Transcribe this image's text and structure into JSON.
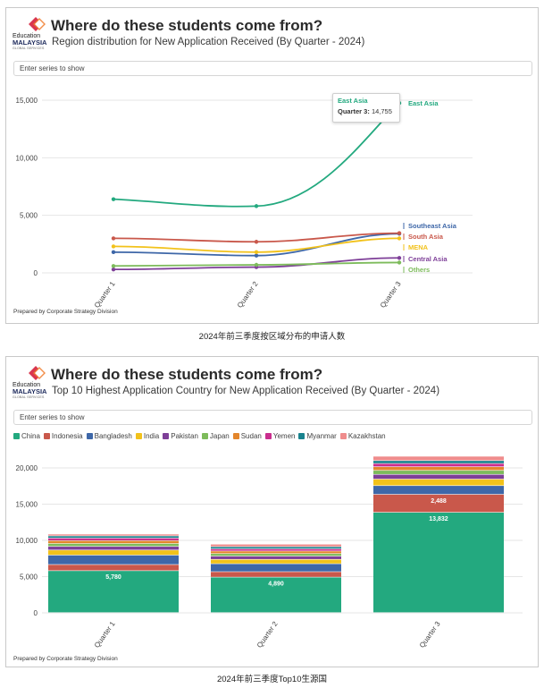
{
  "brand": {
    "logo_line1": "Education",
    "logo_line2": "MALAYSIA",
    "logo_line3": "GLOBAL SERVICES"
  },
  "panel1": {
    "title": "Where do these students come from?",
    "subtitle": "Region distribution for New Application Received (By Quarter - 2024)",
    "series_placeholder": "Enter series to show",
    "footer": "Prepared by Corporate Strategy Division",
    "caption": "2024年前三季度按区域分布的申请人数",
    "tooltip": {
      "series": "East Asia",
      "label": "Quarter 3:",
      "value": "14,755"
    }
  },
  "panel2": {
    "title": "Where do these students come from?",
    "subtitle": "Top 10 Highest Application Country for New Application Received (By Quarter - 2024)",
    "series_placeholder": "Enter series to show",
    "footer": "Prepared by Corporate Strategy Division",
    "caption": "2024年前三季度Top10生源国"
  },
  "chart_data": [
    {
      "type": "line",
      "title": "Where do these students come from?",
      "subtitle": "Region distribution for New Application Received (By Quarter - 2024)",
      "categories": [
        "Quarter 1",
        "Quarter 2",
        "Quarter 3"
      ],
      "ylim": [
        0,
        15000
      ],
      "yticks": [
        0,
        5000,
        10000,
        15000
      ],
      "ytick_labels": [
        "0",
        "5,000",
        "10,000",
        "15,000"
      ],
      "grid": true,
      "legend": "end-labels",
      "series": [
        {
          "name": "East Asia",
          "values": [
            6400,
            5800,
            14755
          ],
          "color": "#23a97f"
        },
        {
          "name": "Southeast Asia",
          "values": [
            1800,
            1500,
            3400
          ],
          "color": "#3e67a8"
        },
        {
          "name": "South Asia",
          "values": [
            3000,
            2700,
            3450
          ],
          "color": "#c9584b"
        },
        {
          "name": "MENA",
          "values": [
            2300,
            1800,
            3000
          ],
          "color": "#f2c21b"
        },
        {
          "name": "Central Asia",
          "values": [
            300,
            500,
            1300
          ],
          "color": "#7e3f98"
        },
        {
          "name": "Others",
          "values": [
            600,
            700,
            900
          ],
          "color": "#7dbb5b"
        }
      ]
    },
    {
      "type": "bar",
      "stacked": true,
      "title": "Where do these students come from?",
      "subtitle": "Top 10 Highest Application Country for New Application Received (By Quarter - 2024)",
      "categories": [
        "Quarter 1",
        "Quarter 2",
        "Quarter 3"
      ],
      "ylim": [
        0,
        20000
      ],
      "yticks": [
        0,
        5000,
        10000,
        15000,
        20000
      ],
      "ytick_labels": [
        "0",
        "5,000",
        "10,000",
        "15,000",
        "20,000"
      ],
      "grid": true,
      "legend": "top",
      "series": [
        {
          "name": "China",
          "values": [
            5780,
            4890,
            13832
          ],
          "color": "#23a97f",
          "labels": [
            "5,780",
            "4,890",
            "13,832"
          ]
        },
        {
          "name": "Indonesia",
          "values": [
            850,
            750,
            2488
          ],
          "color": "#c9584b",
          "labels": [
            "",
            "",
            "2,488"
          ]
        },
        {
          "name": "Bangladesh",
          "values": [
            1300,
            1100,
            1200
          ],
          "color": "#3e67a8"
        },
        {
          "name": "India",
          "values": [
            700,
            600,
            900
          ],
          "color": "#f2c21b"
        },
        {
          "name": "Pakistan",
          "values": [
            500,
            450,
            650
          ],
          "color": "#7e3f98"
        },
        {
          "name": "Japan",
          "values": [
            400,
            350,
            550
          ],
          "color": "#7dbb5b"
        },
        {
          "name": "Sudan",
          "values": [
            400,
            350,
            500
          ],
          "color": "#e3862c"
        },
        {
          "name": "Yemen",
          "values": [
            350,
            300,
            450
          ],
          "color": "#c92e8e"
        },
        {
          "name": "Myanmar",
          "values": [
            300,
            300,
            400
          ],
          "color": "#19838e"
        },
        {
          "name": "Kazakhstan",
          "values": [
            250,
            350,
            600
          ],
          "color": "#ef8c8c"
        }
      ]
    }
  ]
}
